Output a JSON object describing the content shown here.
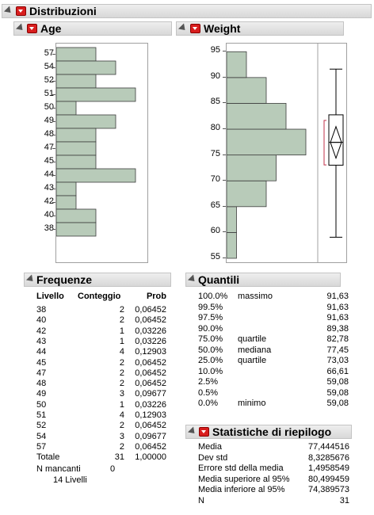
{
  "report": {
    "title": "Distribuzioni"
  },
  "age": {
    "title": "Age",
    "ticks": [
      "57",
      "54",
      "52",
      "51",
      "50",
      "49",
      "48",
      "47",
      "45",
      "44",
      "43",
      "42",
      "40",
      "38"
    ],
    "counts": [
      2,
      3,
      2,
      4,
      1,
      3,
      2,
      2,
      2,
      4,
      1,
      1,
      2,
      2
    ]
  },
  "weight": {
    "title": "Weight",
    "ticks": [
      "95",
      "90",
      "85",
      "80",
      "75",
      "70",
      "65",
      "60",
      "55"
    ],
    "bins": [
      [
        55,
        60,
        1
      ],
      [
        60,
        65,
        1
      ],
      [
        65,
        70,
        4
      ],
      [
        70,
        75,
        5
      ],
      [
        75,
        80,
        8
      ],
      [
        80,
        85,
        6
      ],
      [
        85,
        90,
        4
      ],
      [
        90,
        95,
        2
      ]
    ],
    "box": {
      "min": 59.08,
      "q1": 73.03,
      "median": 77.45,
      "q3": 82.78,
      "max": 91.63,
      "mean": 77.444516,
      "ci_low": 74.389573,
      "ci_high": 80.499459
    }
  },
  "frequenze": {
    "title": "Frequenze",
    "headers": [
      "Livello",
      "Conteggio",
      "Prob"
    ],
    "rows": [
      [
        "38",
        "2",
        "0,06452"
      ],
      [
        "40",
        "2",
        "0,06452"
      ],
      [
        "42",
        "1",
        "0,03226"
      ],
      [
        "43",
        "1",
        "0,03226"
      ],
      [
        "44",
        "4",
        "0,12903"
      ],
      [
        "45",
        "2",
        "0,06452"
      ],
      [
        "47",
        "2",
        "0,06452"
      ],
      [
        "48",
        "2",
        "0,06452"
      ],
      [
        "49",
        "3",
        "0,09677"
      ],
      [
        "50",
        "1",
        "0,03226"
      ],
      [
        "51",
        "4",
        "0,12903"
      ],
      [
        "52",
        "2",
        "0,06452"
      ],
      [
        "54",
        "3",
        "0,09677"
      ],
      [
        "57",
        "2",
        "0,06452"
      ]
    ],
    "total": [
      "Totale",
      "31",
      "1,00000"
    ],
    "missing": [
      "N mancanti",
      "0"
    ],
    "levels": "14  Livelli"
  },
  "quantili": {
    "title": "Quantili",
    "rows": [
      [
        "100.0%",
        "massimo",
        "91,63"
      ],
      [
        "99.5%",
        "",
        "91,63"
      ],
      [
        "97.5%",
        "",
        "91,63"
      ],
      [
        "90.0%",
        "",
        "89,38"
      ],
      [
        "75.0%",
        "quartile",
        "82,78"
      ],
      [
        "50.0%",
        "mediana",
        "77,45"
      ],
      [
        "25.0%",
        "quartile",
        "73,03"
      ],
      [
        "10.0%",
        "",
        "66,61"
      ],
      [
        "2.5%",
        "",
        "59,08"
      ],
      [
        "0.5%",
        "",
        "59,08"
      ],
      [
        "0.0%",
        "minimo",
        "59,08"
      ]
    ]
  },
  "statistiche": {
    "title": "Statistiche di riepilogo",
    "rows": [
      [
        "Media",
        "77,444516"
      ],
      [
        "Dev std",
        "8,3285676"
      ],
      [
        "Errore std della media",
        "1,4958549"
      ],
      [
        "Media superiore al 95%",
        "80,499459"
      ],
      [
        "Media inferiore al 95%",
        "74,389573"
      ],
      [
        "N",
        "31"
      ]
    ]
  },
  "colors": {
    "bar_fill": "#b8cbb9",
    "bar_stroke": "#3c3c3c",
    "header_button": "#d81e1e",
    "ci_bracket": "#c0304a"
  }
}
